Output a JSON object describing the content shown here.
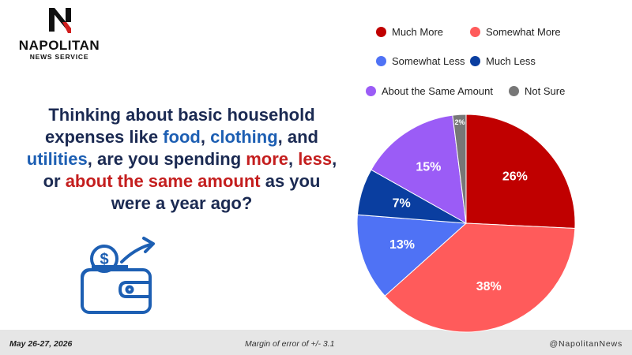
{
  "brand": {
    "name": "NAPOLITAN",
    "subtitle": "NEWS SERVICE"
  },
  "question": {
    "parts": [
      {
        "text": "Thinking about basic household expenses like ",
        "style": "plain"
      },
      {
        "text": "food",
        "style": "blue"
      },
      {
        "text": ", ",
        "style": "plain"
      },
      {
        "text": "clothing",
        "style": "blue"
      },
      {
        "text": ", and ",
        "style": "plain"
      },
      {
        "text": "utilities",
        "style": "blue"
      },
      {
        "text": ", are you spending ",
        "style": "plain"
      },
      {
        "text": "more",
        "style": "red"
      },
      {
        "text": ", ",
        "style": "plain"
      },
      {
        "text": "less",
        "style": "red"
      },
      {
        "text": ", or ",
        "style": "plain"
      },
      {
        "text": "about the same amount",
        "style": "red"
      },
      {
        "text": " as you were a year ago?",
        "style": "plain"
      }
    ]
  },
  "chart_data": {
    "type": "pie",
    "title": "",
    "legend_placement": "top",
    "series": [
      {
        "name": "Much More",
        "value": 26,
        "label": "26%",
        "color": "#c00000"
      },
      {
        "name": "Somewhat More",
        "value": 38,
        "label": "38%",
        "color": "#ff5b5b"
      },
      {
        "name": "Somewhat Less",
        "value": 13,
        "label": "13%",
        "color": "#4f72f5"
      },
      {
        "name": "Much Less",
        "value": 7,
        "label": "7%",
        "color": "#0a3ea0"
      },
      {
        "name": "About the Same Amount",
        "value": 15,
        "label": "15%",
        "color": "#9b5cf6"
      },
      {
        "name": "Not Sure",
        "value": 2,
        "label": "2%",
        "color": "#777777"
      }
    ]
  },
  "footer": {
    "date": "May 26-27, 2026",
    "margin_of_error": "Margin of error of +/- 3.1",
    "handle": "@NapolitanNews"
  },
  "icons": {
    "logo": "napolitan-n-logo-icon",
    "wallet": "wallet-with-coin-icon"
  }
}
